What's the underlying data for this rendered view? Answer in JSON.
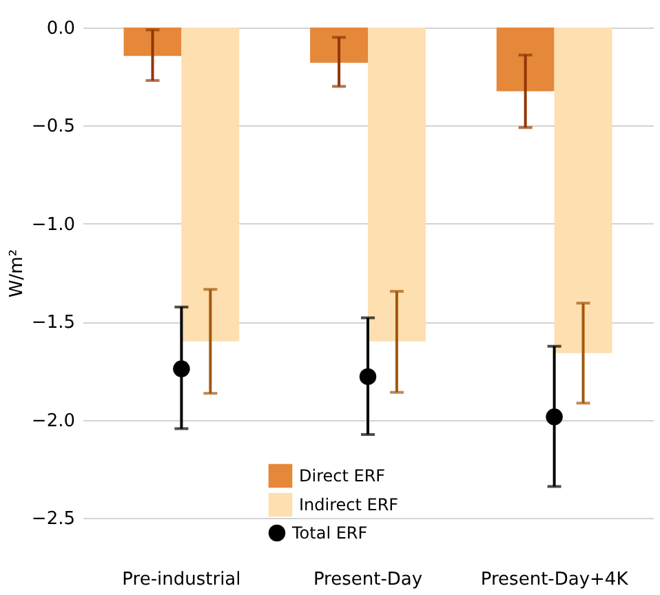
{
  "chart_data": {
    "type": "bar",
    "ylabel": "W/m²",
    "categories": [
      "Pre-industrial",
      "Present-Day",
      "Present-Day+4K"
    ],
    "series": [
      {
        "name": "Direct ERF",
        "color": "#e5883a",
        "values": [
          -0.145,
          -0.18,
          -0.325
        ],
        "errors": [
          [
            -0.27,
            -0.012
          ],
          [
            -0.3,
            -0.05
          ],
          [
            -0.51,
            -0.14
          ]
        ]
      },
      {
        "name": "Indirect ERF",
        "color": "#fddfb0",
        "values": [
          -1.6,
          -1.6,
          -1.66
        ],
        "errors": [
          [
            -1.865,
            -1.335
          ],
          [
            -1.86,
            -1.345
          ],
          [
            -1.915,
            -1.405
          ]
        ]
      },
      {
        "name": "Total ERF",
        "type": "scatter",
        "marker": "circle",
        "color": "#000000",
        "values": [
          -1.74,
          -1.78,
          -1.985
        ],
        "errors": [
          [
            -2.045,
            -1.425
          ],
          [
            -2.075,
            -1.48
          ],
          [
            -2.34,
            -1.625
          ]
        ]
      }
    ],
    "ylim": [
      -2.5,
      0.0
    ],
    "yticks": [
      {
        "value": 0,
        "label": "0.0"
      },
      -0.5,
      {
        "value": -1,
        "label": "−1.0"
      },
      -1.5,
      {
        "value": -2,
        "label": "−2.0"
      },
      -2.5
    ],
    "grid": "y",
    "legend": "bottom"
  }
}
